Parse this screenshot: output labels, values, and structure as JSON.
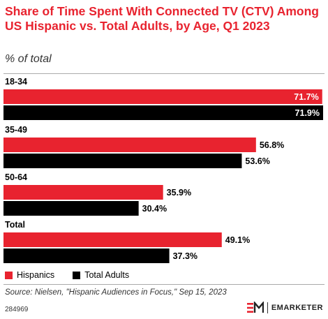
{
  "header": {
    "title": "Share of Time Spent With Connected TV (CTV) Among US Hispanic vs. Total Adults, by Age, Q1 2023",
    "subtitle": "% of total"
  },
  "colors": {
    "hispanics": "#e8232f",
    "total_adults": "#000000",
    "title": "#e8232f"
  },
  "chart_data": {
    "type": "bar",
    "orientation": "horizontal",
    "categories": [
      "18-34",
      "35-49",
      "50-64",
      "Total"
    ],
    "series": [
      {
        "name": "Hispanics",
        "values": [
          71.7,
          56.8,
          35.9,
          49.1
        ],
        "labels": [
          "71.7%",
          "56.8%",
          "35.9%",
          "49.1%"
        ]
      },
      {
        "name": "Total Adults",
        "values": [
          71.9,
          53.6,
          30.4,
          37.3
        ],
        "labels": [
          "71.9%",
          "53.6%",
          "30.4%",
          "37.3%"
        ]
      }
    ],
    "xlim": [
      0,
      71.9
    ],
    "grid": false,
    "legend": "bottom-left"
  },
  "legend": {
    "hispanics": "Hispanics",
    "total_adults": "Total Adults"
  },
  "footer": {
    "source": "Source: Nielsen, \"Hispanic Audiences in Focus,\" Sep 15, 2023",
    "chart_id": "284969",
    "brand": "EMARKETER",
    "brand_icon": "emarketer-logo-icon"
  }
}
